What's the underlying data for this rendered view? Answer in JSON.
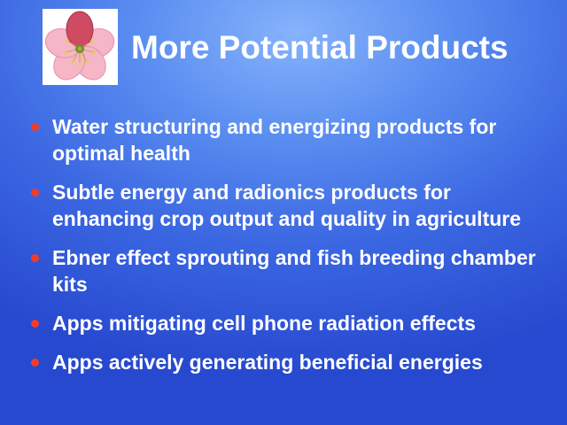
{
  "slide": {
    "title": "More Potential Products",
    "logo_icon": "flower-blossom-icon",
    "bullet_color": "#f23c28",
    "bullets": [
      "Water structuring and energizing products for optimal health",
      "Subtle energy and radionics products for enhancing crop output and quality in agriculture",
      "Ebner effect sprouting and fish breeding chamber kits",
      "Apps mitigating cell phone radiation effects",
      "Apps actively generating beneficial energies"
    ]
  }
}
